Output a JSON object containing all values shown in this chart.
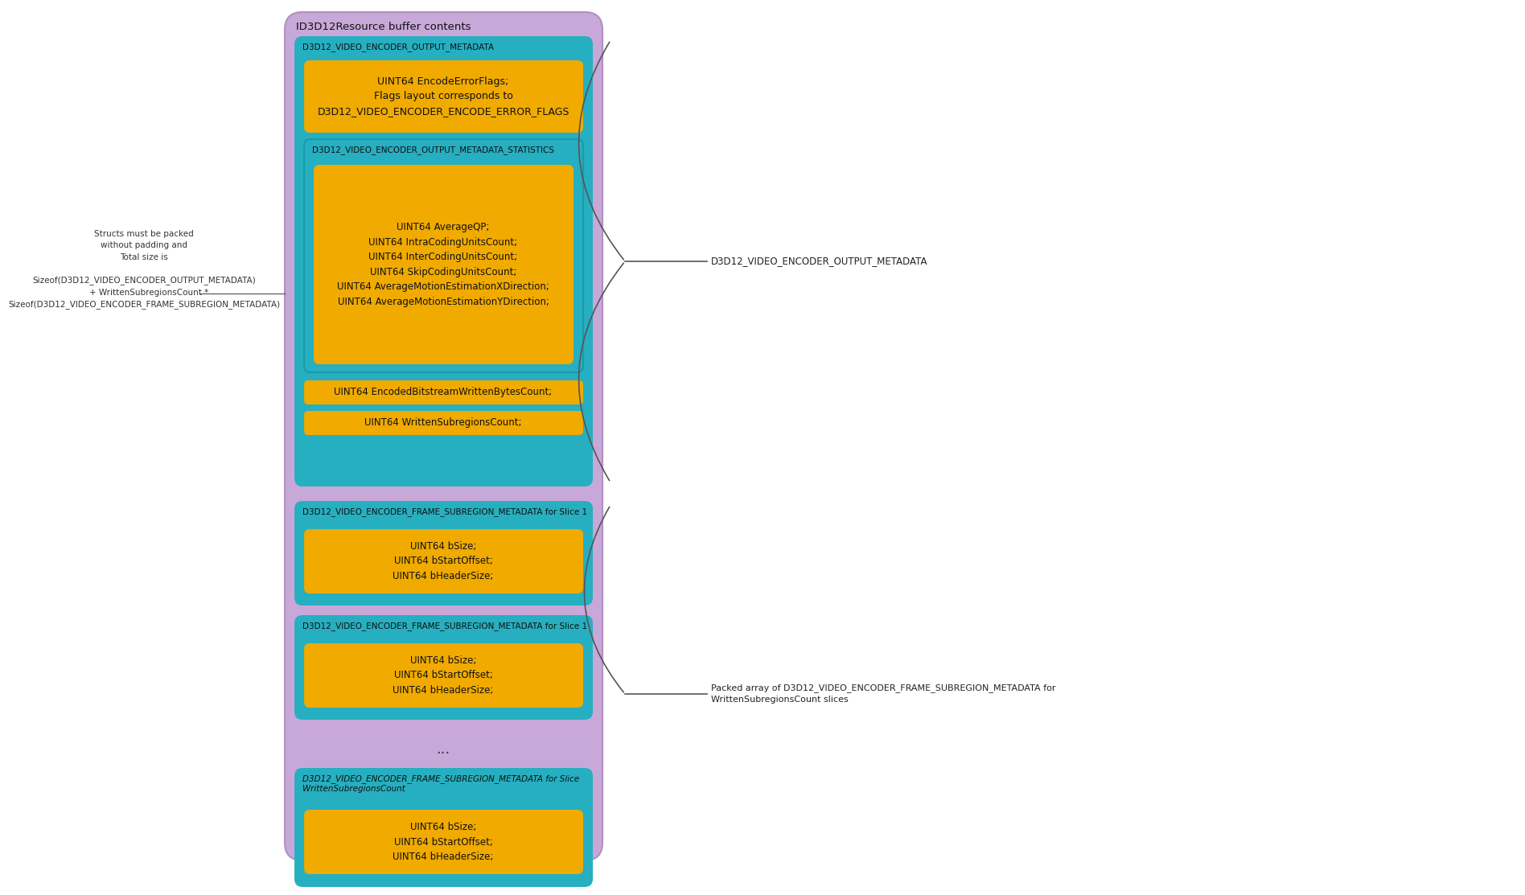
{
  "bg_color": "#ffffff",
  "C_outer": "#c8a8d8",
  "C_outer_edge": "#b090c0",
  "C_teal": "#26afc0",
  "C_yellow": "#f0aa00",
  "outer_title": "ID3D12Resource buffer contents",
  "sec1_title": "D3D12_VIDEO_ENCODER_OUTPUT_METADATA",
  "block1_text": "UINT64 EncodeErrorFlags;\nFlags layout corresponds to\nD3D12_VIDEO_ENCODER_ENCODE_ERROR_FLAGS",
  "stats_title": "D3D12_VIDEO_ENCODER_OUTPUT_METADATA_STATISTICS",
  "stats_text": "UINT64 AverageQP;\nUINT64 IntraCodingUnitsCount;\nUINT64 InterCodingUnitsCount;\nUINT64 SkipCodingUnitsCount;\nUINT64 AverageMotionEstimationXDirection;\nUINT64 AverageMotionEstimationYDirection;",
  "block2_text": "UINT64 EncodedBitstreamWrittenBytesCount;",
  "block3_text": "UINT64 WrittenSubregionsCount;",
  "slice1_title": "D3D12_VIDEO_ENCODER_FRAME_SUBREGION_METADATA for Slice 1",
  "slice1_text": "UINT64 bSize;\nUINT64 bStartOffset;\nUINT64 bHeaderSize;",
  "slice2_title": "D3D12_VIDEO_ENCODER_FRAME_SUBREGION_METADATA for Slice 1",
  "slice2_text": "UINT64 bSize;\nUINT64 bStartOffset;\nUINT64 bHeaderSize;",
  "dots": "...",
  "sliceN_title": "D3D12_VIDEO_ENCODER_FRAME_SUBREGION_METADATA for Slice\nWrittenSubregionsCount",
  "sliceN_text": "UINT64 bSize;\nUINT64 bStartOffset;\nUINT64 bHeaderSize;",
  "left_text": "Structs must be packed\nwithout padding and\nTotal size is\n\nSizeof(D3D12_VIDEO_ENCODER_OUTPUT_METADATA)\n    + WrittenSubregionsCount *\nSizeof(D3D12_VIDEO_ENCODER_FRAME_SUBREGION_METADATA)",
  "right1_text": "D3D12_VIDEO_ENCODER_OUTPUT_METADATA",
  "right2_text": "Packed array of D3D12_VIDEO_ENCODER_FRAME_SUBREGION_METADATA for\nWrittenSubregionsCount slices"
}
